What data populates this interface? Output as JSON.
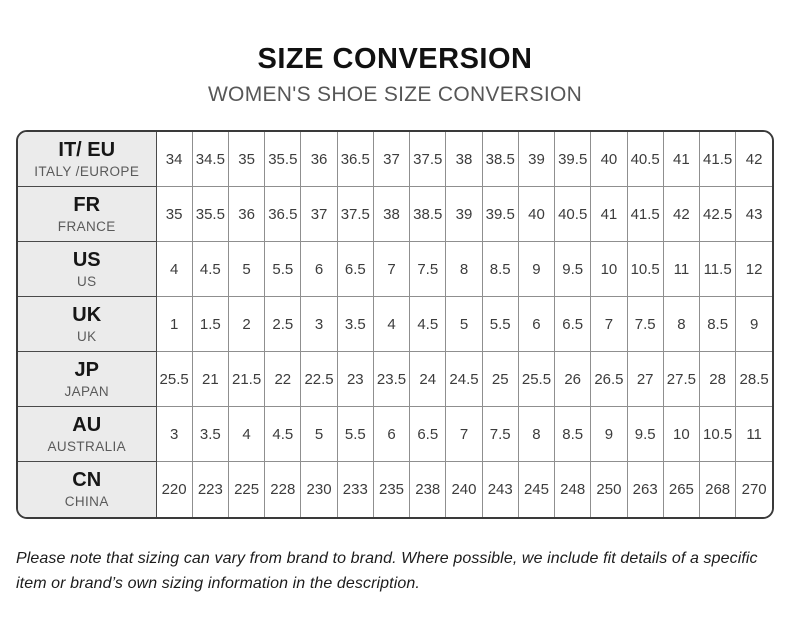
{
  "header": {
    "title": "SIZE CONVERSION",
    "subtitle": "WOMEN'S SHOE SIZE CONVERSION"
  },
  "table": {
    "rows": [
      {
        "code": "IT/ EU",
        "region": "ITALY /EUROPE",
        "values": [
          "34",
          "34.5",
          "35",
          "35.5",
          "36",
          "36.5",
          "37",
          "37.5",
          "38",
          "38.5",
          "39",
          "39.5",
          "40",
          "40.5",
          "41",
          "41.5",
          "42"
        ]
      },
      {
        "code": "FR",
        "region": "FRANCE",
        "values": [
          "35",
          "35.5",
          "36",
          "36.5",
          "37",
          "37.5",
          "38",
          "38.5",
          "39",
          "39.5",
          "40",
          "40.5",
          "41",
          "41.5",
          "42",
          "42.5",
          "43"
        ]
      },
      {
        "code": "US",
        "region": "US",
        "values": [
          "4",
          "4.5",
          "5",
          "5.5",
          "6",
          "6.5",
          "7",
          "7.5",
          "8",
          "8.5",
          "9",
          "9.5",
          "10",
          "10.5",
          "11",
          "11.5",
          "12"
        ]
      },
      {
        "code": "UK",
        "region": "UK",
        "values": [
          "1",
          "1.5",
          "2",
          "2.5",
          "3",
          "3.5",
          "4",
          "4.5",
          "5",
          "5.5",
          "6",
          "6.5",
          "7",
          "7.5",
          "8",
          "8.5",
          "9"
        ]
      },
      {
        "code": "JP",
        "region": "JAPAN",
        "values": [
          "25.5",
          "21",
          "21.5",
          "22",
          "22.5",
          "23",
          "23.5",
          "24",
          "24.5",
          "25",
          "25.5",
          "26",
          "26.5",
          "27",
          "27.5",
          "28",
          "28.5"
        ]
      },
      {
        "code": "AU",
        "region": "AUSTRALIA",
        "values": [
          "3",
          "3.5",
          "4",
          "4.5",
          "5",
          "5.5",
          "6",
          "6.5",
          "7",
          "7.5",
          "8",
          "8.5",
          "9",
          "9.5",
          "10",
          "10.5",
          "11"
        ]
      },
      {
        "code": "CN",
        "region": "CHINA",
        "values": [
          "220",
          "223",
          "225",
          "228",
          "230",
          "233",
          "235",
          "238",
          "240",
          "243",
          "245",
          "248",
          "250",
          "263",
          "265",
          "268",
          "270"
        ]
      }
    ]
  },
  "footer": {
    "note": "Please note that sizing can vary from brand to brand. Where possible, we include fit details of a specific item or brand’s own sizing information in the description."
  },
  "colors": {
    "title_text": "#111111",
    "subtitle_text": "#575757",
    "table_outer_border": "#3a3a3a",
    "header_cell_bg": "#ebebeb",
    "inner_grid_line": "#8f8f8f",
    "data_text": "#3c3c3c"
  }
}
